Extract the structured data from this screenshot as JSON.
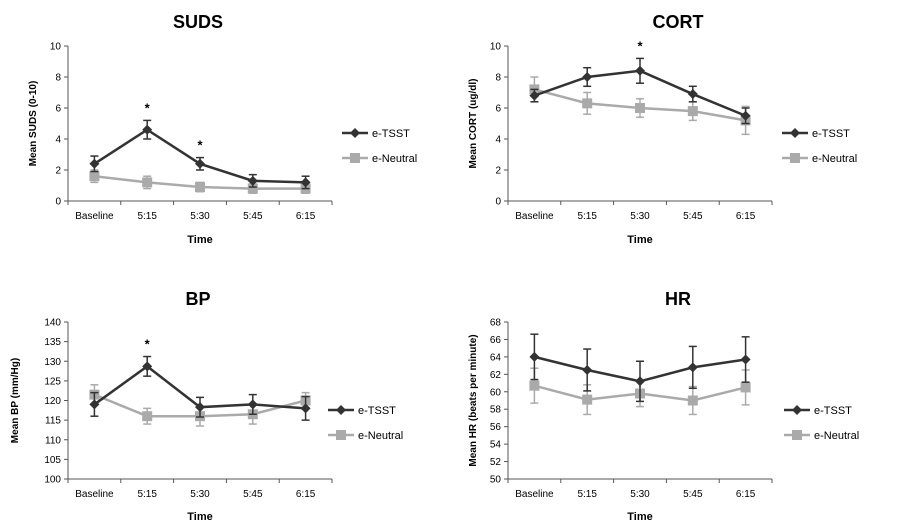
{
  "chart_data": [
    {
      "type": "line",
      "title": "SUDS",
      "xlabel": "Time",
      "ylabel": "Mean SUDS (0-10)",
      "categories": [
        "Baseline",
        "5:15",
        "5:30",
        "5:45",
        "6:15"
      ],
      "ylim": [
        0,
        10
      ],
      "yticks": [
        0,
        2,
        4,
        6,
        8,
        10
      ],
      "series": [
        {
          "name": "e-TSST",
          "color": "#333333",
          "marker": "diamond",
          "values": [
            2.4,
            4.6,
            2.4,
            1.3,
            1.2
          ],
          "error": [
            0.5,
            0.6,
            0.4,
            0.4,
            0.4
          ]
        },
        {
          "name": "e-Neutral",
          "color": "#aaaaaa",
          "marker": "square",
          "values": [
            1.6,
            1.2,
            0.9,
            0.8,
            0.8
          ],
          "error": [
            0.4,
            0.4,
            0.3,
            0.3,
            0.3
          ]
        }
      ],
      "annotations": [
        {
          "index": 1,
          "text": "*"
        },
        {
          "index": 2,
          "text": "*"
        }
      ]
    },
    {
      "type": "line",
      "title": "CORT",
      "xlabel": "Time",
      "ylabel": "Mean CORT (ug/dl)",
      "categories": [
        "Baseline",
        "5:15",
        "5:30",
        "5:45",
        "6:15"
      ],
      "ylim": [
        0,
        10
      ],
      "yticks": [
        0,
        2,
        4,
        6,
        8,
        10
      ],
      "series": [
        {
          "name": "e-TSST",
          "color": "#333333",
          "marker": "diamond",
          "values": [
            6.8,
            8.0,
            8.4,
            6.9,
            5.5
          ],
          "error": [
            0.4,
            0.6,
            0.8,
            0.5,
            0.5
          ]
        },
        {
          "name": "e-Neutral",
          "color": "#aaaaaa",
          "marker": "square",
          "values": [
            7.2,
            6.3,
            6.0,
            5.8,
            5.2
          ],
          "error": [
            0.8,
            0.7,
            0.6,
            0.6,
            0.9
          ]
        }
      ],
      "annotations": [
        {
          "index": 2,
          "text": "*"
        }
      ]
    },
    {
      "type": "line",
      "title": "BP",
      "xlabel": "Time",
      "ylabel": "Mean BP (mm/Hg)",
      "categories": [
        "Baseline",
        "5:15",
        "5:30",
        "5:45",
        "6:15"
      ],
      "ylim": [
        100,
        140
      ],
      "yticks": [
        100,
        105,
        110,
        115,
        120,
        125,
        130,
        135,
        140
      ],
      "series": [
        {
          "name": "e-TSST",
          "color": "#333333",
          "marker": "diamond",
          "values": [
            119,
            128.7,
            118.3,
            119,
            118
          ],
          "error": [
            3,
            2.5,
            2.5,
            2.5,
            3
          ]
        },
        {
          "name": "e-Neutral",
          "color": "#aaaaaa",
          "marker": "square",
          "values": [
            121.5,
            116,
            116,
            116.5,
            120
          ],
          "error": [
            2.5,
            2,
            2.5,
            2.5,
            2
          ]
        }
      ],
      "annotations": [
        {
          "index": 1,
          "text": "*"
        }
      ]
    },
    {
      "type": "line",
      "title": "HR",
      "xlabel": "Time",
      "ylabel": "Mean HR (beats per minute)",
      "categories": [
        "Baseline",
        "5:15",
        "5:30",
        "5:45",
        "6:15"
      ],
      "ylim": [
        50,
        68
      ],
      "yticks": [
        50,
        52,
        54,
        56,
        58,
        60,
        62,
        64,
        66,
        68
      ],
      "series": [
        {
          "name": "e-TSST",
          "color": "#333333",
          "marker": "diamond",
          "values": [
            64,
            62.5,
            61.2,
            62.8,
            63.7
          ],
          "error": [
            2.6,
            2.4,
            2.3,
            2.4,
            2.6
          ]
        },
        {
          "name": "e-Neutral",
          "color": "#aaaaaa",
          "marker": "square",
          "values": [
            60.7,
            59.1,
            59.8,
            59,
            60.5
          ],
          "error": [
            2,
            1.7,
            1.5,
            1.6,
            2
          ]
        }
      ],
      "annotations": []
    }
  ]
}
